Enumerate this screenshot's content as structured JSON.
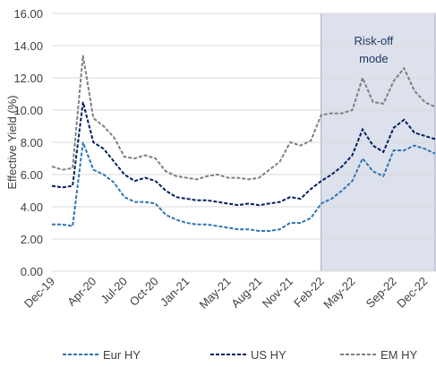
{
  "chart_data": {
    "type": "line",
    "y_axis_label": "Effective Yield (%)",
    "categories": [
      "Dec-19",
      null,
      null,
      null,
      "Apr-20",
      null,
      null,
      "Jul-20",
      null,
      null,
      "Oct-20",
      null,
      null,
      "Jan-21",
      null,
      null,
      null,
      "May-21",
      null,
      null,
      "Aug-21",
      null,
      null,
      "Nov-21",
      null,
      null,
      "Feb-22",
      null,
      null,
      "May-22",
      null,
      null,
      null,
      "Sep-22",
      null,
      null,
      "Dec-22",
      null
    ],
    "series": [
      {
        "name": "Eur HY",
        "color": "#2e75b6",
        "values": [
          2.9,
          2.9,
          2.8,
          8.0,
          6.3,
          6.0,
          5.5,
          4.6,
          4.3,
          4.3,
          4.2,
          3.5,
          3.2,
          3.0,
          2.9,
          2.9,
          2.8,
          2.7,
          2.6,
          2.6,
          2.5,
          2.5,
          2.6,
          3.0,
          3.0,
          3.3,
          4.2,
          4.5,
          5.0,
          5.6,
          7.0,
          6.2,
          5.9,
          7.5,
          7.5,
          7.8,
          7.6,
          7.3
        ]
      },
      {
        "name": "US HY",
        "color": "#002060",
        "values": [
          5.3,
          5.2,
          5.3,
          10.5,
          8.0,
          7.6,
          6.8,
          6.0,
          5.6,
          5.8,
          5.6,
          5.0,
          4.6,
          4.5,
          4.4,
          4.4,
          4.3,
          4.2,
          4.1,
          4.2,
          4.1,
          4.2,
          4.3,
          4.6,
          4.5,
          5.1,
          5.6,
          6.0,
          6.5,
          7.2,
          8.8,
          7.8,
          7.4,
          8.9,
          9.4,
          8.6,
          8.4,
          8.2
        ]
      },
      {
        "name": "EM HY",
        "color": "#7f7f7f",
        "values": [
          6.5,
          6.3,
          6.4,
          13.4,
          9.5,
          9.0,
          8.3,
          7.1,
          7.0,
          7.2,
          7.0,
          6.2,
          5.9,
          5.8,
          5.7,
          5.9,
          6.0,
          5.8,
          5.8,
          5.7,
          5.8,
          6.3,
          6.8,
          8.0,
          7.8,
          8.1,
          9.7,
          9.8,
          9.8,
          10.0,
          12.0,
          10.5,
          10.4,
          11.8,
          12.6,
          11.2,
          10.5,
          10.2
        ]
      }
    ],
    "ylim": [
      0,
      16
    ],
    "yticks": [
      {
        "value": 0,
        "label": "0.00"
      },
      {
        "value": 2,
        "label": "2.00"
      },
      {
        "value": 4,
        "label": "4.00"
      },
      {
        "value": 6,
        "label": "6.00"
      },
      {
        "value": 8,
        "label": "8.00"
      },
      {
        "value": 10,
        "label": "10.00"
      },
      {
        "value": 12,
        "label": "12.00"
      },
      {
        "value": 14,
        "label": "14.00"
      },
      {
        "value": 16,
        "label": "16.00"
      }
    ],
    "grid": true,
    "legend": "bottom",
    "shaded_region": {
      "start": 26,
      "end": 37,
      "color": "#dde1ec",
      "label": [
        "Risk-off",
        "mode"
      ]
    }
  }
}
